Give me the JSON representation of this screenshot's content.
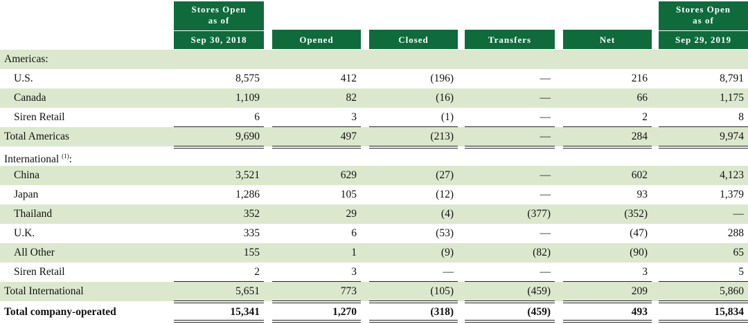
{
  "columns": [
    {
      "key": "open2018",
      "line1": "Stores Open",
      "line2": "as of",
      "line3": "Sep 30, 2018"
    },
    {
      "key": "opened",
      "line3": "Opened"
    },
    {
      "key": "closed",
      "line3": "Closed"
    },
    {
      "key": "transfers",
      "line3": "Transfers"
    },
    {
      "key": "net",
      "line3": "Net"
    },
    {
      "key": "open2019",
      "line1": "Stores Open",
      "line2": "as of",
      "line3": "Sep 29, 2019"
    }
  ],
  "rows": [
    {
      "type": "section",
      "label": "Americas:",
      "shaded": true
    },
    {
      "type": "data",
      "label": "U.S.",
      "indent": true,
      "shaded": false,
      "values": [
        "8,575",
        "412",
        "(196)",
        "—",
        "216",
        "8,791"
      ]
    },
    {
      "type": "data",
      "label": "Canada",
      "indent": true,
      "shaded": true,
      "values": [
        "1,109",
        "82",
        "(16)",
        "—",
        "66",
        "1,175"
      ]
    },
    {
      "type": "data",
      "label": "Siren Retail",
      "indent": true,
      "shaded": false,
      "underline": true,
      "values": [
        "6",
        "3",
        "(1)",
        "—",
        "2",
        "8"
      ]
    },
    {
      "type": "total",
      "label": "Total Americas",
      "shaded": true,
      "double_underline": true,
      "values": [
        "9,690",
        "497",
        "(213)",
        "—",
        "284",
        "9,974"
      ]
    },
    {
      "type": "section",
      "label": "International",
      "footnote": "(1)",
      "suffix": ":",
      "shaded": false
    },
    {
      "type": "data",
      "label": "China",
      "indent": true,
      "shaded": true,
      "values": [
        "3,521",
        "629",
        "(27)",
        "—",
        "602",
        "4,123"
      ]
    },
    {
      "type": "data",
      "label": "Japan",
      "indent": true,
      "shaded": false,
      "values": [
        "1,286",
        "105",
        "(12)",
        "—",
        "93",
        "1,379"
      ]
    },
    {
      "type": "data",
      "label": "Thailand",
      "indent": true,
      "shaded": true,
      "values": [
        "352",
        "29",
        "(4)",
        "(377)",
        "(352)",
        "—"
      ]
    },
    {
      "type": "data",
      "label": "U.K.",
      "indent": true,
      "shaded": false,
      "values": [
        "335",
        "6",
        "(53)",
        "—",
        "(47)",
        "288"
      ]
    },
    {
      "type": "data",
      "label": "All Other",
      "indent": true,
      "shaded": true,
      "values": [
        "155",
        "1",
        "(9)",
        "(82)",
        "(90)",
        "65"
      ]
    },
    {
      "type": "data",
      "label": "Siren Retail",
      "indent": true,
      "shaded": false,
      "underline": true,
      "values": [
        "2",
        "3",
        "—",
        "—",
        "3",
        "5"
      ]
    },
    {
      "type": "total",
      "label": "Total International",
      "shaded": true,
      "double_underline": true,
      "values": [
        "5,651",
        "773",
        "(105)",
        "(459)",
        "209",
        "5,860"
      ]
    },
    {
      "type": "grand",
      "label": "Total company-operated",
      "bold": true,
      "shaded": false,
      "double_underline": true,
      "values": [
        "15,341",
        "1,270",
        "(318)",
        "(459)",
        "493",
        "15,834"
      ]
    }
  ]
}
